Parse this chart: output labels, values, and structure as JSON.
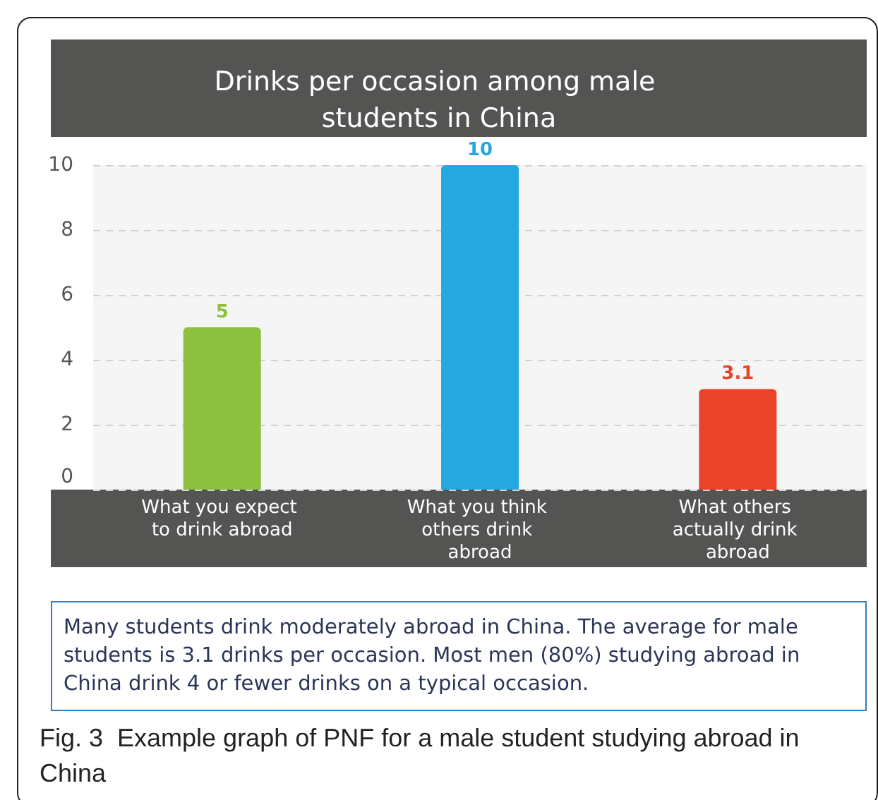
{
  "chart_data": {
    "type": "bar",
    "title": "Drinks per occasion among male students in China",
    "categories": [
      "What you expect to drink abroad",
      "What you think others drink abroad",
      "What others actually drink abroad"
    ],
    "values": [
      5,
      10,
      3.1
    ],
    "colors": [
      "#8bc13f",
      "#27a7df",
      "#eb432a"
    ],
    "ylim": [
      0,
      10
    ],
    "yticks": [
      0,
      2,
      4,
      6,
      8,
      10
    ],
    "grid": "y",
    "data_labels": true,
    "annotations": [
      "Many students drink moderately abroad in China. The average for male students is 3.1 drinks per occasion. Most men (80%) studying abroad in China drink 4 or fewer drinks on a typical occasion.",
      "Fig. 3  Example graph of PNF for a male student studying abroad in China"
    ]
  }
}
